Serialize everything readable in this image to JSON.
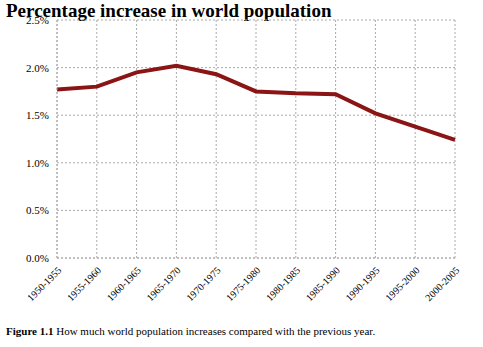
{
  "chart_data": {
    "type": "line",
    "title": "Percentage increase in world population",
    "caption_label": "Figure 1.1",
    "caption": "How much world population increases compared with the previous year.",
    "categories": [
      "1950-1955",
      "1955-1960",
      "1960-1965",
      "1965-1970",
      "1970-1975",
      "1975-1980",
      "1980-1985",
      "1985-1990",
      "1990-1995",
      "1995-2000",
      "2000-2005"
    ],
    "values": [
      1.77,
      1.8,
      1.95,
      2.02,
      1.93,
      1.75,
      1.73,
      1.72,
      1.52,
      1.38,
      1.24
    ],
    "color": "#8b1414",
    "ylim": [
      0,
      2.5
    ],
    "yticks": [
      {
        "value": 0,
        "label": "0.0%"
      },
      {
        "value": 0.5,
        "label": "0.5%"
      },
      {
        "value": 1,
        "label": "1.0%"
      },
      {
        "value": 1.5,
        "label": "1.5%"
      },
      {
        "value": 2,
        "label": "2.0%"
      },
      {
        "value": 2.5,
        "label": "2.5%"
      }
    ],
    "grid": true
  }
}
